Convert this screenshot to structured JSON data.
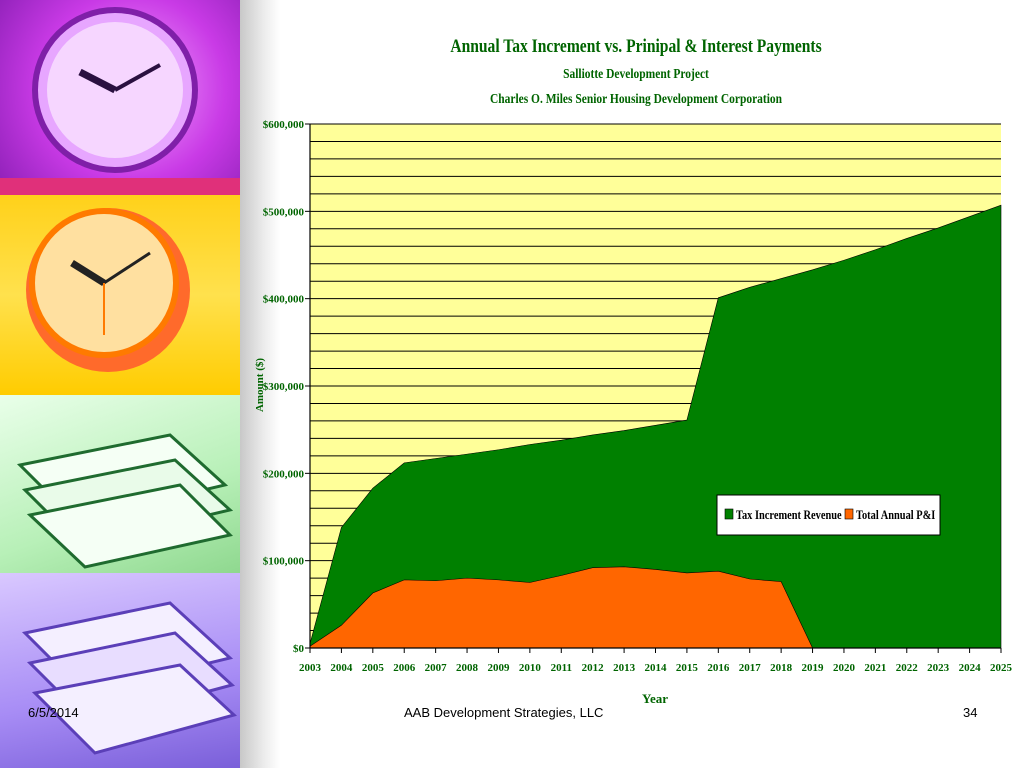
{
  "slide": {
    "date": "6/5/2014",
    "company": "AAB Development Strategies, LLC",
    "page_number": "34"
  },
  "chart_data": {
    "type": "area",
    "title": "Annual Tax Increment vs. Prinipal & Interest Payments",
    "subtitle": "Salliotte Development Project",
    "subtitle2": "Charles O. Miles Senior Housing Development Corporation",
    "xlabel": "Year",
    "ylabel": "Amount ($)",
    "ylim": [
      0,
      600000
    ],
    "yticks": [
      0,
      100000,
      200000,
      300000,
      400000,
      500000,
      600000
    ],
    "ytick_labels": [
      "$0",
      "$100,000",
      "$200,000",
      "$300,000",
      "$400,000",
      "$500,000",
      "$600,000"
    ],
    "x": [
      "2003",
      "2004",
      "2005",
      "2006",
      "2007",
      "2008",
      "2009",
      "2010",
      "2011",
      "2012",
      "2013",
      "2014",
      "2015",
      "2016",
      "2017",
      "2018",
      "2019",
      "2020",
      "2021",
      "2022",
      "2023",
      "2024",
      "2025"
    ],
    "series": [
      {
        "name": "Tax Increment Revenue",
        "color": "#008000",
        "values": [
          5000,
          138000,
          183000,
          212000,
          217000,
          222000,
          227000,
          233000,
          238000,
          244000,
          249000,
          255000,
          261000,
          401000,
          413000,
          423000,
          433000,
          444000,
          456000,
          469000,
          481000,
          494000,
          507000
        ]
      },
      {
        "name": "Total Annual P&I",
        "color": "#ff6600",
        "values": [
          2000,
          26000,
          63000,
          78000,
          77000,
          80000,
          78000,
          75000,
          83000,
          92000,
          93000,
          90000,
          86000,
          88000,
          79000,
          76000,
          0,
          null,
          null,
          null,
          null,
          null,
          null
        ]
      }
    ],
    "grid": true,
    "plot_background": "#ffff99",
    "legend_position": "inside-right"
  }
}
